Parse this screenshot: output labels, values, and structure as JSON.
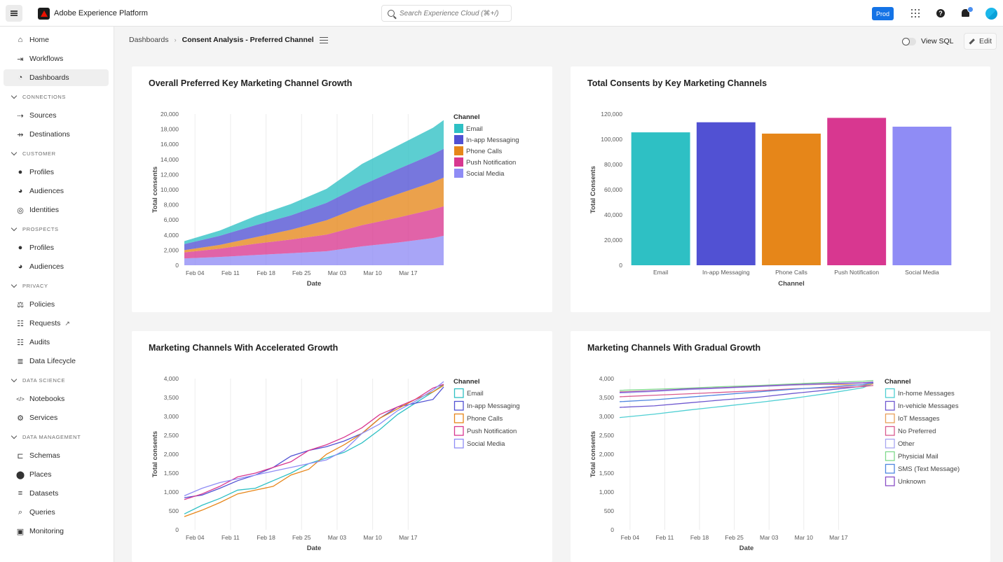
{
  "topbar": {
    "app_title": "Adobe Experience Platform",
    "search_placeholder": "Search Experience Cloud (⌘+/)",
    "env_label": "Prod",
    "help_glyph": "?"
  },
  "sidebar": {
    "items": [
      {
        "label": "Home",
        "icon": "home-icon",
        "glyph": "⌂"
      },
      {
        "label": "Workflows",
        "icon": "workflows-icon",
        "glyph": "⇥"
      },
      {
        "label": "Dashboards",
        "icon": "dashboard-gauge-icon",
        "glyph": "◔",
        "active": true
      }
    ],
    "sections": [
      {
        "title": "CONNECTIONS",
        "items": [
          {
            "label": "Sources",
            "icon": "sources-icon",
            "glyph": "⇢"
          },
          {
            "label": "Destinations",
            "icon": "destinations-icon",
            "glyph": "⇸"
          }
        ]
      },
      {
        "title": "CUSTOMER",
        "items": [
          {
            "label": "Profiles",
            "icon": "profile-icon",
            "glyph": "●"
          },
          {
            "label": "Audiences",
            "icon": "audiences-icon",
            "glyph": "◕"
          },
          {
            "label": "Identities",
            "icon": "fingerprint-icon",
            "glyph": "◎"
          }
        ]
      },
      {
        "title": "PROSPECTS",
        "items": [
          {
            "label": "Profiles",
            "icon": "profile-icon",
            "glyph": "●"
          },
          {
            "label": "Audiences",
            "icon": "audiences-icon",
            "glyph": "◕"
          }
        ]
      },
      {
        "title": "PRIVACY",
        "items": [
          {
            "label": "Policies",
            "icon": "gavel-icon",
            "glyph": "⚖"
          },
          {
            "label": "Requests",
            "icon": "checklist-icon",
            "glyph": "☷",
            "external": true,
            "external_glyph": "↗"
          },
          {
            "label": "Audits",
            "icon": "checklist-icon",
            "glyph": "☷"
          },
          {
            "label": "Data Lifecycle",
            "icon": "data-lifecycle-icon",
            "glyph": "≣"
          }
        ]
      },
      {
        "title": "DATA SCIENCE",
        "items": [
          {
            "label": "Notebooks",
            "icon": "code-icon",
            "glyph": "</>"
          },
          {
            "label": "Services",
            "icon": "services-gear-icon",
            "glyph": "⚙"
          }
        ]
      },
      {
        "title": "DATA MANAGEMENT",
        "items": [
          {
            "label": "Schemas",
            "icon": "schema-icon",
            "glyph": "⊏"
          },
          {
            "label": "Places",
            "icon": "location-pin-icon",
            "glyph": "⬤"
          },
          {
            "label": "Datasets",
            "icon": "database-icon",
            "glyph": "≡"
          },
          {
            "label": "Queries",
            "icon": "query-icon",
            "glyph": "⌕"
          },
          {
            "label": "Monitoring",
            "icon": "monitor-icon",
            "glyph": "▣"
          }
        ]
      }
    ]
  },
  "header": {
    "breadcrumb_root": "Dashboards",
    "breadcrumb_sep": "›",
    "breadcrumb_current": "Consent Analysis - Preferred Channel",
    "view_sql_label": "View SQL",
    "view_sql_on": false,
    "edit_label": "Edit"
  },
  "colors": {
    "key_channels": [
      "#2ec0c4",
      "#5151d3",
      "#e68619",
      "#d83790",
      "#8f8cf5"
    ],
    "gradual_channels": [
      "#4fcfd3",
      "#6e58d0",
      "#e8a05a",
      "#d95b8f",
      "#a8a6f0",
      "#7fd98c",
      "#4f86e0",
      "#8a4fc7"
    ]
  },
  "chart_data": [
    {
      "id": "growth-area",
      "type": "area",
      "stacked": true,
      "title": "Overall Preferred Key Marketing Channel Growth",
      "xlabel": "Date",
      "ylabel": "Total consents",
      "ylim": [
        0,
        20000
      ],
      "yticks": [
        "0",
        "2,000",
        "4,000",
        "6,000",
        "8,000",
        "10,000",
        "12,000",
        "14,000",
        "16,000",
        "18,000",
        "20,000"
      ],
      "xticks": [
        "Feb 04",
        "Feb 11",
        "Feb 18",
        "Feb 25",
        "Mar 03",
        "Mar 10",
        "Mar 17"
      ],
      "legend_title": "Channel",
      "legend_position": "right",
      "x_weeks": [
        0,
        1,
        2,
        3,
        4,
        5,
        6,
        7,
        7.3
      ],
      "x_note": "week offsets; Feb 04 = 0.3, one week per tick, starting Feb 02 (offset 0)",
      "series": [
        {
          "name": "Social Media",
          "values": [
            900,
            1100,
            1350,
            1600,
            1850,
            2500,
            3000,
            3600,
            3900
          ]
        },
        {
          "name": "Push Notification",
          "values": [
            800,
            1100,
            1500,
            1800,
            2200,
            2800,
            3300,
            3800,
            3900
          ]
        },
        {
          "name": "Phone Calls",
          "values": [
            300,
            500,
            850,
            1300,
            1900,
            2500,
            3100,
            3600,
            3800
          ]
        },
        {
          "name": "In-app Messaging",
          "values": [
            800,
            1200,
            1600,
            1900,
            2300,
            2800,
            3300,
            3700,
            3800
          ]
        },
        {
          "name": "Email",
          "values": [
            400,
            700,
            1200,
            1500,
            1850,
            2800,
            3100,
            3500,
            3800
          ]
        }
      ]
    },
    {
      "id": "total-bar",
      "type": "bar",
      "title": "Total Consents by Key Marketing Channels",
      "xlabel": "Channel",
      "ylabel": "Total Consents",
      "ylim": [
        0,
        120000
      ],
      "yticks": [
        "0",
        "20,000",
        "40,000",
        "60,000",
        "80,000",
        "100,000",
        "120,000"
      ],
      "categories": [
        "Email",
        "In-app Messaging",
        "Phone Calls",
        "Push Notification",
        "Social Media"
      ],
      "values": [
        105500,
        113500,
        104500,
        117000,
        110000
      ]
    },
    {
      "id": "accelerated-line",
      "type": "line",
      "title": "Marketing Channels With Accelerated Growth",
      "xlabel": "Date",
      "ylabel": "Total consents",
      "ylim": [
        0,
        4000
      ],
      "yticks": [
        "0",
        "500",
        "1,000",
        "1,500",
        "2,000",
        "2,500",
        "3,000",
        "3,500",
        "4,000"
      ],
      "xticks": [
        "Feb 04",
        "Feb 11",
        "Feb 18",
        "Feb 25",
        "Mar 03",
        "Mar 10",
        "Mar 17"
      ],
      "legend_title": "Channel",
      "legend_position": "right",
      "x_weeks": [
        0,
        0.5,
        1,
        1.5,
        2,
        2.5,
        3,
        3.5,
        4,
        4.5,
        5,
        5.5,
        6,
        6.5,
        7,
        7.3
      ],
      "series": [
        {
          "name": "Email",
          "values": [
            420,
            650,
            830,
            1050,
            1100,
            1300,
            1500,
            1750,
            1900,
            2050,
            2300,
            2650,
            3050,
            3350,
            3650,
            3850
          ]
        },
        {
          "name": "In-app Messaging",
          "values": [
            850,
            920,
            1100,
            1300,
            1450,
            1650,
            1950,
            2100,
            2200,
            2350,
            2550,
            2950,
            3250,
            3350,
            3450,
            3780
          ]
        },
        {
          "name": "Phone Calls",
          "values": [
            350,
            520,
            720,
            950,
            1050,
            1150,
            1450,
            1600,
            2000,
            2250,
            2550,
            2950,
            3200,
            3450,
            3650,
            3820
          ]
        },
        {
          "name": "Push Notification",
          "values": [
            800,
            950,
            1150,
            1400,
            1500,
            1650,
            1800,
            2100,
            2250,
            2450,
            2700,
            3050,
            3250,
            3450,
            3750,
            3850
          ]
        },
        {
          "name": "Social Media",
          "values": [
            900,
            1100,
            1250,
            1350,
            1450,
            1550,
            1650,
            1750,
            1850,
            2100,
            2550,
            2800,
            3150,
            3400,
            3700,
            3920
          ]
        }
      ]
    },
    {
      "id": "gradual-line",
      "type": "line",
      "title": "Marketing Channels With Gradual Growth",
      "xlabel": "Date",
      "ylabel": "Total consents",
      "ylim": [
        0,
        4000
      ],
      "yticks": [
        "0",
        "500",
        "1,000",
        "1,500",
        "2,000",
        "2,500",
        "3,000",
        "3,500",
        "4,000"
      ],
      "xticks": [
        "Feb 04",
        "Feb 11",
        "Feb 18",
        "Feb 25",
        "Mar 03",
        "Mar 10",
        "Mar 17"
      ],
      "legend_title": "Channel",
      "legend_position": "right",
      "x_weeks": [
        0,
        1,
        2,
        3,
        4,
        5,
        6,
        7,
        7.3
      ],
      "series": [
        {
          "name": "In-home Messages",
          "values": [
            2970,
            3060,
            3170,
            3270,
            3370,
            3480,
            3610,
            3760,
            3870
          ]
        },
        {
          "name": "In-vehicle Messages",
          "values": [
            3240,
            3280,
            3360,
            3440,
            3510,
            3610,
            3700,
            3800,
            3880
          ]
        },
        {
          "name": "IoT Messages",
          "values": [
            3650,
            3680,
            3720,
            3760,
            3800,
            3830,
            3850,
            3830,
            3860
          ]
        },
        {
          "name": "No Preferred",
          "values": [
            3520,
            3560,
            3600,
            3640,
            3680,
            3730,
            3760,
            3790,
            3820
          ]
        },
        {
          "name": "Other",
          "values": [
            3620,
            3660,
            3710,
            3750,
            3790,
            3830,
            3860,
            3880,
            3900
          ]
        },
        {
          "name": "Physicial Mail",
          "values": [
            3690,
            3720,
            3750,
            3790,
            3820,
            3860,
            3900,
            3930,
            3950
          ]
        },
        {
          "name": "SMS (Text Message)",
          "values": [
            3390,
            3440,
            3510,
            3580,
            3650,
            3720,
            3780,
            3840,
            3900
          ]
        },
        {
          "name": "Unknown",
          "values": [
            3640,
            3680,
            3730,
            3760,
            3800,
            3840,
            3870,
            3890,
            3910
          ]
        }
      ]
    }
  ]
}
